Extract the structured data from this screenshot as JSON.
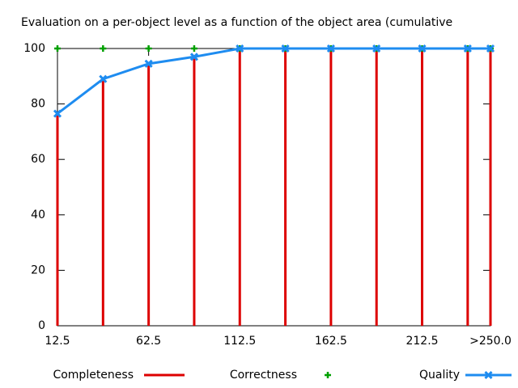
{
  "chart_data": {
    "type": "line",
    "title": "Evaluation on a per-object level as a function of the object area (cumulative",
    "x": [
      12.5,
      37.5,
      62.5,
      87.5,
      112.5,
      137.5,
      162.5,
      187.5,
      212.5,
      237.5,
      250
    ],
    "xlim": [
      12.5,
      250
    ],
    "xticks": [
      12.5,
      62.5,
      112.5,
      162.5,
      212.5,
      {
        "value": 250,
        "label": ">250.0"
      }
    ],
    "ylim": [
      0,
      100
    ],
    "yticks": [
      0,
      20,
      40,
      60,
      80,
      100
    ],
    "legend": "bottom",
    "series": [
      {
        "name": "Completeness",
        "color": "#dd0000",
        "style": "impulses",
        "values": [
          76.5,
          89,
          94.5,
          97,
          100,
          100,
          100,
          100,
          100,
          100,
          100
        ]
      },
      {
        "name": "Correctness",
        "color": "#00a000",
        "style": "points",
        "values": [
          100,
          100,
          100,
          100,
          100,
          100,
          100,
          100,
          100,
          100,
          100
        ]
      },
      {
        "name": "Quality",
        "color": "#1e8cf0",
        "style": "linespoints",
        "values": [
          76.5,
          89,
          94.5,
          97,
          100,
          100,
          100,
          100,
          100,
          100,
          100
        ]
      }
    ]
  }
}
